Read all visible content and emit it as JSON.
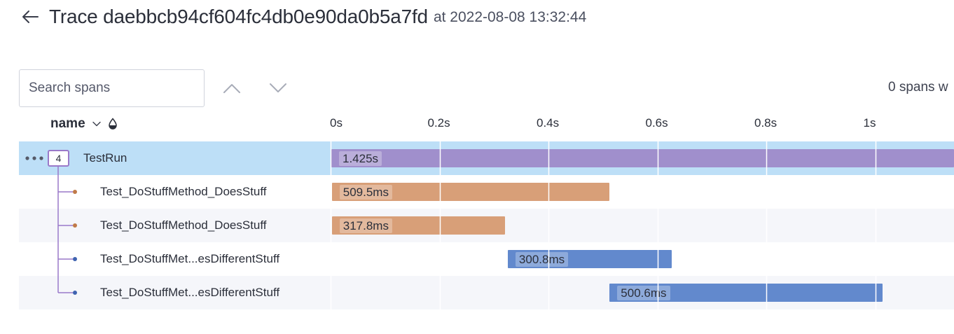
{
  "header": {
    "title": "Trace daebbcb94cf604fc4db0e90da0b5a7fd",
    "timestamp": "at 2022-08-08 13:32:44",
    "back_icon": "arrow-left-icon"
  },
  "toolbar": {
    "search_placeholder": "Search spans",
    "search_value": "",
    "prev_icon": "chevron-up-icon",
    "next_icon": "chevron-down-icon",
    "match_count": "0 spans w"
  },
  "columns": {
    "name_label": "name",
    "sort_icon": "chevron-down-icon",
    "color_icon": "drop-icon"
  },
  "timeline": {
    "total_seconds": 1.425,
    "ticks": [
      {
        "label": "0s",
        "value": 0
      },
      {
        "label": "0.2s",
        "value": 0.2
      },
      {
        "label": "0.4s",
        "value": 0.4
      },
      {
        "label": "0.6s",
        "value": 0.6
      },
      {
        "label": "0.8s",
        "value": 0.8
      },
      {
        "label": "1s",
        "value": 1.0
      }
    ]
  },
  "spans": [
    {
      "name": "TestRun",
      "duration": "1.425s",
      "start_s": 0,
      "duration_s": 1.425,
      "depth": 0,
      "child_count": "4",
      "color": "#a08fcc",
      "dot_color": "#9a79c9",
      "selected": true
    },
    {
      "name": "Test_DoStuffMethod_DoesStuff",
      "duration": "509.5ms",
      "start_s": 0.001,
      "duration_s": 0.5095,
      "depth": 1,
      "color": "#d89f78",
      "dot_color": "#c07a48",
      "selected": false
    },
    {
      "name": "Test_DoStuffMethod_DoesStuff",
      "duration": "317.8ms",
      "start_s": 0.001,
      "duration_s": 0.3178,
      "depth": 1,
      "color": "#d89f78",
      "dot_color": "#c07a48",
      "selected": false
    },
    {
      "name": "Test_DoStuffMet...esDifferentStuff",
      "duration": "300.8ms",
      "start_s": 0.324,
      "duration_s": 0.3008,
      "depth": 1,
      "color": "#6289cd",
      "dot_color": "#3e63b0",
      "selected": false
    },
    {
      "name": "Test_DoStuffMet...esDifferentStuff",
      "duration": "500.6ms",
      "start_s": 0.511,
      "duration_s": 0.5006,
      "depth": 1,
      "color": "#6289cd",
      "dot_color": "#3e63b0",
      "selected": false
    }
  ]
}
